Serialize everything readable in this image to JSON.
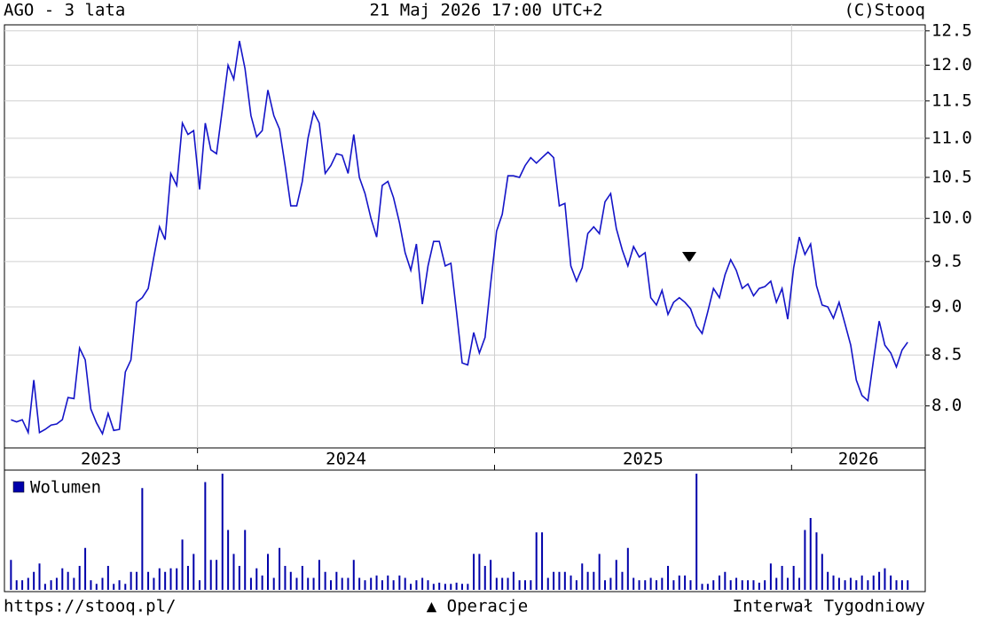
{
  "header": {
    "title": "AGO - 3 lata",
    "date": "21 Maj 2026 17:00 UTC+2",
    "copyright": "(C)Stooq"
  },
  "chart_data": {
    "type": "line",
    "log_y": true,
    "grid": true,
    "color": "#1414c8",
    "x": [
      2023.372,
      2023.391,
      2023.41,
      2023.43,
      2023.449,
      2023.468,
      2023.487,
      2023.507,
      2023.526,
      2023.545,
      2023.564,
      2023.584,
      2023.603,
      2023.622,
      2023.641,
      2023.66,
      2023.68,
      2023.699,
      2023.718,
      2023.737,
      2023.757,
      2023.776,
      2023.795,
      2023.814,
      2023.834,
      2023.853,
      2023.872,
      2023.891,
      2023.91,
      2023.93,
      2023.949,
      2023.968,
      2023.987,
      2024.007,
      2024.026,
      2024.045,
      2024.064,
      2024.084,
      2024.103,
      2024.122,
      2024.141,
      2024.16,
      2024.18,
      2024.199,
      2024.218,
      2024.237,
      2024.257,
      2024.276,
      2024.295,
      2024.314,
      2024.334,
      2024.353,
      2024.372,
      2024.391,
      2024.41,
      2024.43,
      2024.449,
      2024.468,
      2024.487,
      2024.507,
      2024.526,
      2024.545,
      2024.564,
      2024.584,
      2024.603,
      2024.622,
      2024.641,
      2024.66,
      2024.68,
      2024.699,
      2024.718,
      2024.737,
      2024.757,
      2024.776,
      2024.795,
      2024.814,
      2024.834,
      2024.853,
      2024.872,
      2024.891,
      2024.91,
      2024.93,
      2024.949,
      2024.968,
      2024.987,
      2025.007,
      2025.026,
      2025.045,
      2025.064,
      2025.084,
      2025.103,
      2025.122,
      2025.141,
      2025.16,
      2025.18,
      2025.199,
      2025.218,
      2025.237,
      2025.257,
      2025.276,
      2025.295,
      2025.314,
      2025.334,
      2025.353,
      2025.372,
      2025.391,
      2025.41,
      2025.43,
      2025.449,
      2025.468,
      2025.487,
      2025.507,
      2025.526,
      2025.545,
      2025.564,
      2025.584,
      2025.603,
      2025.622,
      2025.641,
      2025.66,
      2025.68,
      2025.699,
      2025.718,
      2025.737,
      2025.757,
      2025.776,
      2025.795,
      2025.814,
      2025.834,
      2025.853,
      2025.872,
      2025.891,
      2025.91,
      2025.93,
      2025.949,
      2025.968,
      2025.987,
      2026.007,
      2026.026,
      2026.045,
      2026.064,
      2026.084,
      2026.103,
      2026.122,
      2026.141,
      2026.16,
      2026.18,
      2026.199,
      2026.218,
      2026.237,
      2026.257,
      2026.276,
      2026.295,
      2026.314,
      2026.334,
      2026.353,
      2026.372,
      2026.391
    ],
    "values": [
      7.87,
      7.85,
      7.87,
      7.75,
      8.25,
      7.75,
      7.78,
      7.82,
      7.83,
      7.87,
      8.08,
      8.07,
      8.57,
      8.45,
      7.97,
      7.84,
      7.74,
      7.93,
      7.77,
      7.78,
      8.33,
      8.45,
      9.05,
      9.1,
      9.2,
      9.55,
      9.9,
      9.75,
      10.55,
      10.4,
      11.2,
      11.05,
      11.1,
      10.35,
      11.2,
      10.85,
      10.8,
      11.4,
      12.0,
      11.8,
      12.35,
      11.95,
      11.3,
      11.02,
      11.1,
      11.65,
      11.3,
      11.12,
      10.65,
      10.15,
      10.15,
      10.45,
      11.0,
      11.35,
      11.2,
      10.55,
      10.65,
      10.8,
      10.78,
      10.55,
      11.05,
      10.5,
      10.3,
      10.0,
      9.78,
      10.4,
      10.45,
      10.25,
      9.95,
      9.6,
      9.4,
      9.7,
      9.03,
      9.45,
      9.73,
      9.73,
      9.45,
      9.48,
      8.95,
      8.42,
      8.4,
      8.73,
      8.52,
      8.68,
      9.25,
      9.85,
      10.05,
      10.52,
      10.52,
      10.5,
      10.65,
      10.75,
      10.68,
      10.75,
      10.82,
      10.75,
      10.15,
      10.18,
      9.45,
      9.28,
      9.43,
      9.82,
      9.9,
      9.82,
      10.2,
      10.3,
      9.88,
      9.63,
      9.45,
      9.67,
      9.55,
      9.6,
      9.1,
      9.02,
      9.18,
      8.92,
      9.05,
      9.1,
      9.05,
      8.98,
      8.8,
      8.72,
      8.95,
      9.2,
      9.1,
      9.35,
      9.52,
      9.4,
      9.2,
      9.25,
      9.12,
      9.2,
      9.22,
      9.28,
      9.05,
      9.2,
      8.87,
      9.43,
      9.78,
      9.58,
      9.7,
      9.23,
      9.02,
      9.0,
      8.88,
      9.05,
      8.82,
      8.6,
      8.25,
      8.1,
      8.05,
      8.45,
      8.85,
      8.6,
      8.52,
      8.38,
      8.55,
      8.63
    ],
    "xlim": [
      2023.35,
      2026.45
    ],
    "xticks": [
      2023,
      2024,
      2025,
      2026
    ],
    "ylim": [
      7.61,
      12.59
    ],
    "yticks": [
      {
        "value": 8,
        "label": "8.0"
      },
      8.5,
      {
        "value": 9,
        "label": "9.0"
      },
      9.5,
      {
        "value": 10,
        "label": "10.0"
      },
      10.5,
      {
        "value": 11,
        "label": "11.0"
      },
      11.5,
      {
        "value": 12,
        "label": "12.0"
      },
      12.5
    ],
    "volume": {
      "name": "Wolumen",
      "color": "#0000aa",
      "ylim": [
        0,
        100
      ],
      "values": [
        25,
        8,
        8,
        10,
        15,
        22,
        5,
        8,
        10,
        18,
        15,
        10,
        20,
        35,
        8,
        5,
        10,
        20,
        5,
        8,
        5,
        15,
        15,
        85,
        15,
        10,
        18,
        15,
        18,
        18,
        42,
        20,
        30,
        8,
        90,
        25,
        25,
        97,
        50,
        30,
        20,
        50,
        10,
        18,
        12,
        30,
        10,
        35,
        20,
        15,
        10,
        20,
        10,
        10,
        25,
        15,
        8,
        15,
        10,
        10,
        25,
        10,
        8,
        10,
        12,
        8,
        12,
        8,
        12,
        10,
        5,
        8,
        10,
        8,
        5,
        6,
        5,
        5,
        6,
        5,
        5,
        30,
        30,
        20,
        25,
        10,
        10,
        10,
        15,
        8,
        8,
        8,
        48,
        48,
        10,
        15,
        15,
        15,
        12,
        8,
        22,
        15,
        15,
        30,
        8,
        10,
        25,
        15,
        35,
        10,
        8,
        8,
        10,
        8,
        10,
        20,
        8,
        12,
        12,
        8,
        97,
        5,
        5,
        8,
        12,
        15,
        8,
        10,
        8,
        8,
        8,
        6,
        8,
        22,
        10,
        20,
        10,
        20,
        10,
        50,
        60,
        48,
        30,
        15,
        12,
        10,
        8,
        10,
        8,
        12,
        8,
        12,
        15,
        18,
        12,
        8,
        8,
        8
      ]
    }
  },
  "footer": {
    "url": "https://stooq.pl/",
    "operations": "▲ Operacje",
    "interval": "Interwał Tygodniowy"
  }
}
